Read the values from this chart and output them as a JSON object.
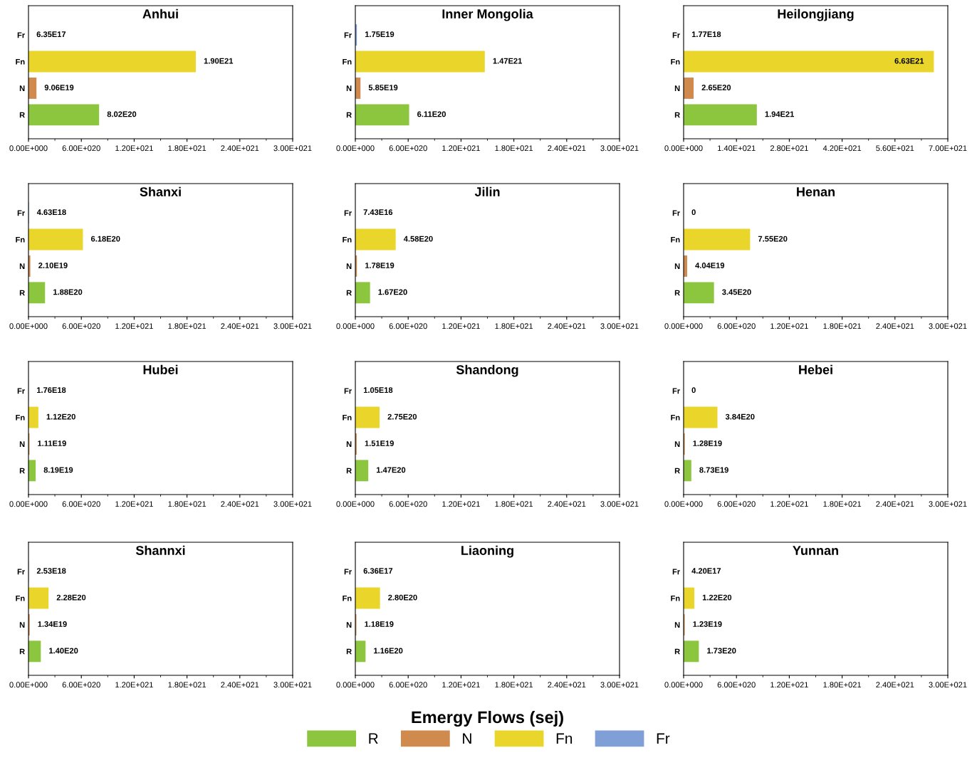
{
  "chart_data": [
    {
      "type": "bar",
      "orientation": "horizontal",
      "title": "Anhui",
      "legend": "bottom",
      "categories": [
        "Fr",
        "Fn",
        "N",
        "R"
      ],
      "xlim": [
        0,
        3e+21
      ],
      "xticks": [
        {
          "value": 0,
          "label": "0.00E+000"
        },
        {
          "value": 6e+20,
          "label": "6.00E+020"
        },
        {
          "value": 1.2e+21,
          "label": "1.20E+021"
        },
        {
          "value": 1.8e+21,
          "label": "1.80E+021"
        },
        {
          "value": 2.4e+21,
          "label": "2.40E+021"
        },
        {
          "value": 3e+21,
          "label": "3.00E+021"
        }
      ],
      "series": [
        {
          "name": "R",
          "color": "#8cc63f",
          "values": [
            null,
            null,
            null,
            8.02e+20
          ],
          "value_labels": [
            null,
            null,
            null,
            "8.02E20"
          ]
        },
        {
          "name": "N",
          "color": "#d08a4e",
          "values": [
            null,
            null,
            9.06e+19,
            null
          ],
          "value_labels": [
            null,
            null,
            "9.06E19",
            null
          ]
        },
        {
          "name": "Fn",
          "color": "#ead62a",
          "values": [
            null,
            1.9e+21,
            null,
            null
          ],
          "value_labels": [
            null,
            "1.90E21",
            null,
            null
          ]
        },
        {
          "name": "Fr",
          "color": "#7f9fd6",
          "values": [
            6.35e+17,
            null,
            null,
            null
          ],
          "value_labels": [
            "6.35E17",
            null,
            null,
            null
          ]
        }
      ]
    },
    {
      "type": "bar",
      "orientation": "horizontal",
      "title": "Inner Mongolia",
      "categories": [
        "Fr",
        "Fn",
        "N",
        "R"
      ],
      "values": [
        1.75e+19,
        1.47e+21,
        5.85e+19,
        6.11e+20
      ],
      "value_labels": [
        "1.75E19",
        "1.47E21",
        "5.85E19",
        "6.11E20"
      ],
      "colors": [
        "#7f9fd6",
        "#ead62a",
        "#d08a4e",
        "#8cc63f"
      ],
      "xlim": [
        0,
        3e+21
      ],
      "xticks": [
        {
          "value": 0,
          "label": "0.00E+000"
        },
        {
          "value": 6e+20,
          "label": "6.00E+020"
        },
        {
          "value": 1.2e+21,
          "label": "1.20E+021"
        },
        {
          "value": 1.8e+21,
          "label": "1.80E+021"
        },
        {
          "value": 2.4e+21,
          "label": "2.40E+021"
        },
        {
          "value": 3e+21,
          "label": "3.00E+021"
        }
      ]
    },
    {
      "type": "bar",
      "orientation": "horizontal",
      "title": "Heilongjiang",
      "categories": [
        "Fr",
        "Fn",
        "N",
        "R"
      ],
      "values": [
        1.77e+18,
        6.63e+21,
        2.65e+20,
        1.94e+21
      ],
      "value_labels": [
        "1.77E18",
        "6.63E21",
        "2.65E20",
        "1.94E21"
      ],
      "colors": [
        "#7f9fd6",
        "#ead62a",
        "#d08a4e",
        "#8cc63f"
      ],
      "xlim": [
        0,
        7e+21
      ],
      "xticks": [
        {
          "value": 0,
          "label": "0.00E+000"
        },
        {
          "value": 1.4e+21,
          "label": "1.40E+021"
        },
        {
          "value": 2.8e+21,
          "label": "2.80E+021"
        },
        {
          "value": 4.2e+21,
          "label": "4.20E+021"
        },
        {
          "value": 5.6e+21,
          "label": "5.60E+021"
        },
        {
          "value": 7e+21,
          "label": "7.00E+021"
        }
      ]
    },
    {
      "type": "bar",
      "orientation": "horizontal",
      "title": "Shanxi",
      "categories": [
        "Fr",
        "Fn",
        "N",
        "R"
      ],
      "values": [
        4.63e+18,
        6.18e+20,
        2.1e+19,
        1.88e+20
      ],
      "value_labels": [
        "4.63E18",
        "6.18E20",
        "2.10E19",
        "1.88E20"
      ],
      "colors": [
        "#7f9fd6",
        "#ead62a",
        "#d08a4e",
        "#8cc63f"
      ],
      "xlim": [
        0,
        3e+21
      ],
      "xticks": [
        {
          "value": 0,
          "label": "0.00E+000"
        },
        {
          "value": 6e+20,
          "label": "6.00E+020"
        },
        {
          "value": 1.2e+21,
          "label": "1.20E+021"
        },
        {
          "value": 1.8e+21,
          "label": "1.80E+021"
        },
        {
          "value": 2.4e+21,
          "label": "2.40E+021"
        },
        {
          "value": 3e+21,
          "label": "3.00E+021"
        }
      ]
    },
    {
      "type": "bar",
      "orientation": "horizontal",
      "title": "Jilin",
      "categories": [
        "Fr",
        "Fn",
        "N",
        "R"
      ],
      "values": [
        7.43e+16,
        4.58e+20,
        1.78e+19,
        1.67e+20
      ],
      "value_labels": [
        "7.43E16",
        "4.58E20",
        "1.78E19",
        "1.67E20"
      ],
      "colors": [
        "#7f9fd6",
        "#ead62a",
        "#d08a4e",
        "#8cc63f"
      ],
      "xlim": [
        0,
        3e+21
      ],
      "xticks": [
        {
          "value": 0,
          "label": "0.00E+000"
        },
        {
          "value": 6e+20,
          "label": "6.00E+020"
        },
        {
          "value": 1.2e+21,
          "label": "1.20E+021"
        },
        {
          "value": 1.8e+21,
          "label": "1.80E+021"
        },
        {
          "value": 2.4e+21,
          "label": "2.40E+021"
        },
        {
          "value": 3e+21,
          "label": "3.00E+021"
        }
      ]
    },
    {
      "type": "bar",
      "orientation": "horizontal",
      "title": "Henan",
      "categories": [
        "Fr",
        "Fn",
        "N",
        "R"
      ],
      "values": [
        0,
        7.55e+20,
        4.04e+19,
        3.45e+20
      ],
      "value_labels": [
        "0",
        "7.55E20",
        "4.04E19",
        "3.45E20"
      ],
      "colors": [
        "#7f9fd6",
        "#ead62a",
        "#d08a4e",
        "#8cc63f"
      ],
      "xlim": [
        0,
        3e+21
      ],
      "xticks": [
        {
          "value": 0,
          "label": "0.00E+000"
        },
        {
          "value": 6e+20,
          "label": "6.00E+020"
        },
        {
          "value": 1.2e+21,
          "label": "1.20E+021"
        },
        {
          "value": 1.8e+21,
          "label": "1.80E+021"
        },
        {
          "value": 2.4e+21,
          "label": "2.40E+021"
        },
        {
          "value": 3e+21,
          "label": "3.00E+021"
        }
      ]
    },
    {
      "type": "bar",
      "orientation": "horizontal",
      "title": "Hubei",
      "categories": [
        "Fr",
        "Fn",
        "N",
        "R"
      ],
      "values": [
        1.76e+18,
        1.12e+20,
        1.11e+19,
        8.19e+19
      ],
      "value_labels": [
        "1.76E18",
        "1.12E20",
        "1.11E19",
        "8.19E19"
      ],
      "colors": [
        "#7f9fd6",
        "#ead62a",
        "#d08a4e",
        "#8cc63f"
      ],
      "xlim": [
        0,
        3e+21
      ],
      "xticks": [
        {
          "value": 0,
          "label": "0.00E+000"
        },
        {
          "value": 6e+20,
          "label": "6.00E+020"
        },
        {
          "value": 1.2e+21,
          "label": "1.20E+021"
        },
        {
          "value": 1.8e+21,
          "label": "1.80E+021"
        },
        {
          "value": 2.4e+21,
          "label": "2.40E+021"
        },
        {
          "value": 3e+21,
          "label": "3.00E+021"
        }
      ]
    },
    {
      "type": "bar",
      "orientation": "horizontal",
      "title": "Shandong",
      "categories": [
        "Fr",
        "Fn",
        "N",
        "R"
      ],
      "values": [
        1.05e+18,
        2.75e+20,
        1.51e+19,
        1.47e+20
      ],
      "value_labels": [
        "1.05E18",
        "2.75E20",
        "1.51E19",
        "1.47E20"
      ],
      "colors": [
        "#7f9fd6",
        "#ead62a",
        "#d08a4e",
        "#8cc63f"
      ],
      "xlim": [
        0,
        3e+21
      ],
      "xticks": [
        {
          "value": 0,
          "label": "0.00E+000"
        },
        {
          "value": 6e+20,
          "label": "6.00E+020"
        },
        {
          "value": 1.2e+21,
          "label": "1.20E+021"
        },
        {
          "value": 1.8e+21,
          "label": "1.80E+021"
        },
        {
          "value": 2.4e+21,
          "label": "2.40E+021"
        },
        {
          "value": 3e+21,
          "label": "3.00E+021"
        }
      ]
    },
    {
      "type": "bar",
      "orientation": "horizontal",
      "title": "Hebei",
      "categories": [
        "Fr",
        "Fn",
        "N",
        "R"
      ],
      "values": [
        0,
        3.84e+20,
        1.28e+19,
        8.73e+19
      ],
      "value_labels": [
        "0",
        "3.84E20",
        "1.28E19",
        "8.73E19"
      ],
      "colors": [
        "#7f9fd6",
        "#ead62a",
        "#d08a4e",
        "#8cc63f"
      ],
      "xlim": [
        0,
        3e+21
      ],
      "xticks": [
        {
          "value": 0,
          "label": "0.00E+000"
        },
        {
          "value": 6e+20,
          "label": "6.00E+020"
        },
        {
          "value": 1.2e+21,
          "label": "1.20E+021"
        },
        {
          "value": 1.8e+21,
          "label": "1.80E+021"
        },
        {
          "value": 2.4e+21,
          "label": "2.40E+021"
        },
        {
          "value": 3e+21,
          "label": "3.00E+021"
        }
      ]
    },
    {
      "type": "bar",
      "orientation": "horizontal",
      "title": "Shannxi",
      "categories": [
        "Fr",
        "Fn",
        "N",
        "R"
      ],
      "values": [
        2.53e+18,
        2.28e+20,
        1.34e+19,
        1.4e+20
      ],
      "value_labels": [
        "2.53E18",
        "2.28E20",
        "1.34E19",
        "1.40E20"
      ],
      "colors": [
        "#7f9fd6",
        "#ead62a",
        "#d08a4e",
        "#8cc63f"
      ],
      "xlim": [
        0,
        3e+21
      ],
      "xticks": [
        {
          "value": 0,
          "label": "0.00E+000"
        },
        {
          "value": 6e+20,
          "label": "6.00E+020"
        },
        {
          "value": 1.2e+21,
          "label": "1.20E+021"
        },
        {
          "value": 1.8e+21,
          "label": "1.80E+021"
        },
        {
          "value": 2.4e+21,
          "label": "2.40E+021"
        },
        {
          "value": 3e+21,
          "label": "3.00E+021"
        }
      ]
    },
    {
      "type": "bar",
      "orientation": "horizontal",
      "title": "Liaoning",
      "xlabel": "Emergy Flows (sej)",
      "categories": [
        "Fr",
        "Fn",
        "N",
        "R"
      ],
      "values": [
        6.36e+17,
        2.8e+20,
        1.18e+19,
        1.16e+20
      ],
      "value_labels": [
        "6.36E17",
        "2.80E20",
        "1.18E19",
        "1.16E20"
      ],
      "colors": [
        "#7f9fd6",
        "#ead62a",
        "#d08a4e",
        "#8cc63f"
      ],
      "xlim": [
        0,
        3e+21
      ],
      "xticks": [
        {
          "value": 0,
          "label": "0.00E+000"
        },
        {
          "value": 6e+20,
          "label": "6.00E+020"
        },
        {
          "value": 1.2e+21,
          "label": "1.20E+021"
        },
        {
          "value": 1.8e+21,
          "label": "1.80E+021"
        },
        {
          "value": 2.4e+21,
          "label": "2.40E+021"
        },
        {
          "value": 3e+21,
          "label": "3.00E+021"
        }
      ]
    },
    {
      "type": "bar",
      "orientation": "horizontal",
      "title": "Yunnan",
      "categories": [
        "Fr",
        "Fn",
        "N",
        "R"
      ],
      "values": [
        4.2e+17,
        1.22e+20,
        1.23e+19,
        1.73e+20
      ],
      "value_labels": [
        "4.20E17",
        "1.22E20",
        "1.23E19",
        "1.73E20"
      ],
      "colors": [
        "#7f9fd6",
        "#ead62a",
        "#d08a4e",
        "#8cc63f"
      ],
      "xlim": [
        0,
        3e+21
      ],
      "xticks": [
        {
          "value": 0,
          "label": "0.00E+000"
        },
        {
          "value": 6e+20,
          "label": "6.00E+020"
        },
        {
          "value": 1.2e+21,
          "label": "1.20E+021"
        },
        {
          "value": 1.8e+21,
          "label": "1.80E+021"
        },
        {
          "value": 2.4e+21,
          "label": "2.40E+021"
        },
        {
          "value": 3e+21,
          "label": "3.00E+021"
        }
      ]
    }
  ]
}
